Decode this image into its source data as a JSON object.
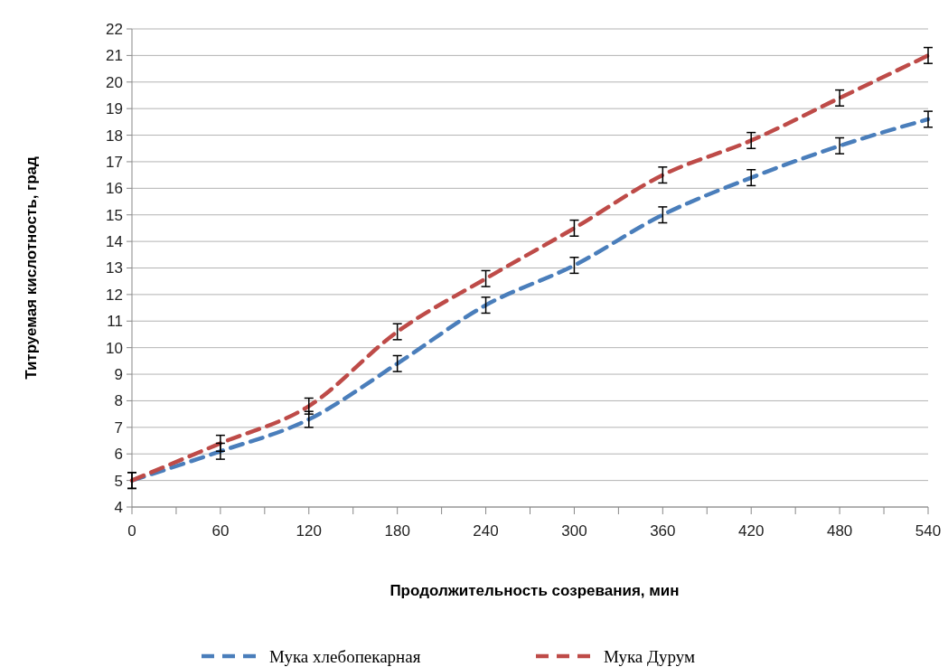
{
  "chart_data": {
    "type": "line",
    "xlabel": "Продолжительность созревания, мин",
    "ylabel": "Титруемая кислотность, град",
    "x": [
      0,
      60,
      120,
      180,
      240,
      300,
      360,
      420,
      480,
      540
    ],
    "series": [
      {
        "name": "Мука хлебопекарная",
        "color": "#4a7ebb",
        "line_style": "dashed",
        "values": [
          5.0,
          6.1,
          7.3,
          9.4,
          11.6,
          13.1,
          15.0,
          16.4,
          17.6,
          18.6
        ],
        "errors": [
          0.3,
          0.3,
          0.3,
          0.3,
          0.3,
          0.3,
          0.3,
          0.3,
          0.3,
          0.3
        ]
      },
      {
        "name": "Мука Дурум",
        "color": "#be4b48",
        "line_style": "dashed",
        "values": [
          5.0,
          6.4,
          7.8,
          10.6,
          12.6,
          14.5,
          16.5,
          17.8,
          19.4,
          21.0
        ],
        "errors": [
          0.3,
          0.3,
          0.3,
          0.3,
          0.3,
          0.3,
          0.3,
          0.3,
          0.3,
          0.3
        ]
      }
    ],
    "xlim": [
      0,
      540
    ],
    "xticks": [
      0,
      {
        "value": 30,
        "label": null
      },
      60,
      {
        "value": 90,
        "label": null
      },
      120,
      {
        "value": 150,
        "label": null
      },
      180,
      {
        "value": 210,
        "label": null
      },
      240,
      {
        "value": 270,
        "label": null
      },
      300,
      {
        "value": 330,
        "label": null
      },
      360,
      {
        "value": 390,
        "label": null
      },
      420,
      {
        "value": 450,
        "label": null
      },
      480,
      {
        "value": 510,
        "label": null
      },
      540
    ],
    "ylim": [
      4,
      22
    ],
    "yticks": [
      4,
      5,
      6,
      7,
      8,
      9,
      10,
      11,
      12,
      13,
      14,
      15,
      16,
      17,
      18,
      19,
      20,
      21,
      22
    ],
    "grid": "y",
    "legend": "bottom",
    "marker": "none"
  }
}
